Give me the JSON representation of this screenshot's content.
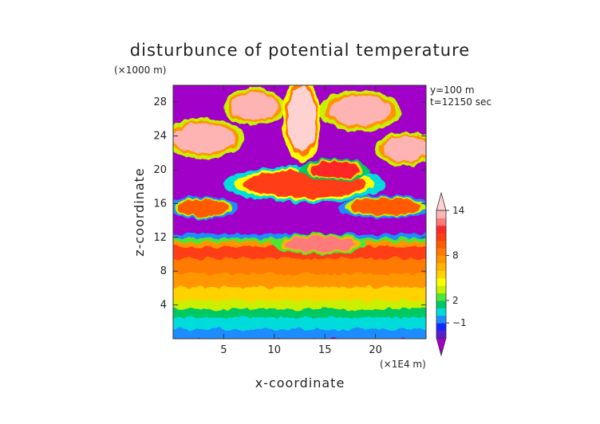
{
  "chart_data": {
    "type": "heatmap",
    "title": "disturbunce of potential temperature",
    "xlabel": "x-coordinate",
    "ylabel": "z-coordinate",
    "x_unit": "(×1E4 m)",
    "y_unit": "(×1000 m)",
    "annotations": [
      "y=100 m",
      "t=12150 sec"
    ],
    "xlim": [
      0,
      25
    ],
    "ylim": [
      0,
      30
    ],
    "xticks": [
      5,
      10,
      15,
      20
    ],
    "yticks": [
      4,
      8,
      12,
      16,
      20,
      24,
      28
    ],
    "colorbar": {
      "tick_labels": [
        "14",
        "8",
        "2",
        "−1"
      ],
      "tick_values": [
        14,
        8,
        2,
        -1
      ],
      "levels": [
        -3,
        -2,
        -1,
        0,
        1,
        2,
        3,
        4,
        5,
        6,
        7,
        8,
        9,
        10,
        11,
        12,
        13,
        14,
        15
      ],
      "colors": [
        "#a000c8",
        "#5a1ecf",
        "#1428ff",
        "#1e8cff",
        "#00dcdc",
        "#00c864",
        "#50e632",
        "#c8f000",
        "#ffff00",
        "#ffd200",
        "#ffb400",
        "#ff9600",
        "#ff7a00",
        "#ff5a00",
        "#ff3c14",
        "#ff2828",
        "#ff7a7a",
        "#ffb4b4",
        "#ffd2d2"
      ],
      "extend": "both"
    },
    "background_value": -3,
    "bands": [
      {
        "z": [
          0,
          1.2
        ],
        "value": 0
      },
      {
        "z": [
          1.2,
          2.6
        ],
        "value": 1
      },
      {
        "z": [
          2.6,
          3.6
        ],
        "value": 2
      },
      {
        "z": [
          3.6,
          4.6
        ],
        "value": 4
      },
      {
        "z": [
          4.6,
          6.2
        ],
        "value": 6
      },
      {
        "z": [
          6.2,
          7.8
        ],
        "value": 8
      },
      {
        "z": [
          7.8,
          9.6
        ],
        "value": 9
      },
      {
        "z": [
          9.6,
          11.0
        ],
        "value": 11
      },
      {
        "z": [
          11.0,
          11.6
        ],
        "value": 8
      },
      {
        "z": [
          11.6,
          12.0
        ],
        "value": 3
      },
      {
        "z": [
          12.0,
          12.4
        ],
        "value": 0
      }
    ],
    "blobs": [
      {
        "x": 3.0,
        "z": 15.5,
        "rx": 2.5,
        "rz": 1.0,
        "value": 10
      },
      {
        "x": 21.0,
        "z": 15.6,
        "rx": 3.5,
        "rz": 1.0,
        "value": 10
      },
      {
        "x": 13.0,
        "z": 18.3,
        "rx": 6.0,
        "rz": 1.6,
        "value": 11
      },
      {
        "x": 16.0,
        "z": 20.0,
        "rx": 2.5,
        "rz": 1.0,
        "value": 12
      },
      {
        "x": 3.0,
        "z": 23.7,
        "rx": 3.0,
        "rz": 1.8,
        "value": 14
      },
      {
        "x": 23.0,
        "z": 22.5,
        "rx": 2.2,
        "rz": 1.5,
        "value": 14
      },
      {
        "x": 8.0,
        "z": 27.5,
        "rx": 2.3,
        "rz": 1.6,
        "value": 14
      },
      {
        "x": 12.7,
        "z": 26.0,
        "rx": 1.4,
        "rz": 3.8,
        "value": 15
      },
      {
        "x": 18.5,
        "z": 27.0,
        "rx": 3.0,
        "rz": 1.8,
        "value": 14
      },
      {
        "x": 14.5,
        "z": 11.2,
        "rx": 3.5,
        "rz": 0.9,
        "value": 13
      }
    ]
  }
}
